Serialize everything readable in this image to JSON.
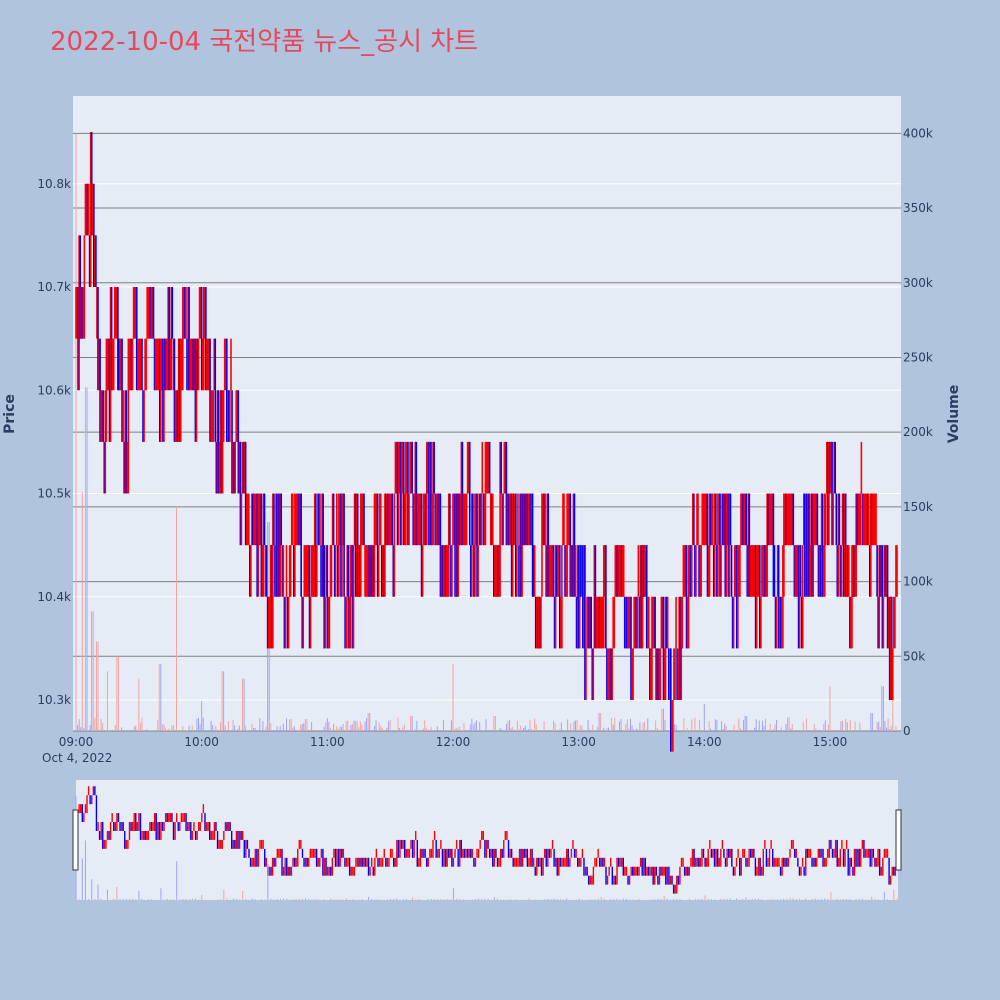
{
  "colors": {
    "page_bg": "#b0c4de",
    "plot_bg": "#e5ecf6",
    "title": "#e8485c",
    "up": "#ff0000",
    "down": "#0000ff",
    "vol_up": "#f4a3a3",
    "vol_down": "#a3a3f4",
    "price_grid": "#ffffff",
    "volume_grid": "#808080",
    "tick_text": "#2a3f5f"
  },
  "chart_data": {
    "type": "candlestick",
    "title": "2022-10-04 국전약품 뉴스_공시 차트",
    "date_label": "Oct 4, 2022",
    "x_ticks": [
      "09:00",
      "10:00",
      "11:00",
      "12:00",
      "13:00",
      "14:00",
      "15:00"
    ],
    "x_range_minutes": [
      0,
      392
    ],
    "price_axis": {
      "label": "Price",
      "range": [
        10270,
        10885
      ],
      "ticks": [
        10300,
        10400,
        10500,
        10600,
        10700,
        10800
      ],
      "tick_labels": [
        "10.3k",
        "10.4k",
        "10.5k",
        "10.6k",
        "10.7k",
        "10.8k"
      ]
    },
    "volume_axis": {
      "label": "Volume",
      "range": [
        0,
        425000
      ],
      "ticks": [
        0,
        50000,
        100000,
        150000,
        200000,
        250000,
        300000,
        350000,
        400000
      ],
      "tick_labels": [
        "0",
        "50k",
        "100k",
        "150k",
        "200k",
        "250k",
        "300k",
        "350k",
        "400k"
      ]
    },
    "price_series": [
      [
        0,
        10650
      ],
      [
        3,
        10700
      ],
      [
        6,
        10750
      ],
      [
        8,
        10800
      ],
      [
        10,
        10650
      ],
      [
        13,
        10550
      ],
      [
        15,
        10600
      ],
      [
        18,
        10650
      ],
      [
        21,
        10600
      ],
      [
        24,
        10550
      ],
      [
        28,
        10650
      ],
      [
        32,
        10600
      ],
      [
        36,
        10650
      ],
      [
        40,
        10600
      ],
      [
        44,
        10650
      ],
      [
        48,
        10600
      ],
      [
        52,
        10650
      ],
      [
        56,
        10600
      ],
      [
        60,
        10650
      ],
      [
        64,
        10600
      ],
      [
        68,
        10550
      ],
      [
        72,
        10600
      ],
      [
        76,
        10550
      ],
      [
        80,
        10500
      ],
      [
        84,
        10450
      ],
      [
        88,
        10450
      ],
      [
        92,
        10400
      ],
      [
        96,
        10450
      ],
      [
        100,
        10400
      ],
      [
        105,
        10450
      ],
      [
        110,
        10400
      ],
      [
        115,
        10450
      ],
      [
        120,
        10400
      ],
      [
        125,
        10450
      ],
      [
        130,
        10400
      ],
      [
        135,
        10450
      ],
      [
        140,
        10400
      ],
      [
        145,
        10450
      ],
      [
        150,
        10450
      ],
      [
        155,
        10500
      ],
      [
        160,
        10500
      ],
      [
        165,
        10450
      ],
      [
        170,
        10500
      ],
      [
        175,
        10450
      ],
      [
        180,
        10450
      ],
      [
        185,
        10500
      ],
      [
        190,
        10450
      ],
      [
        195,
        10500
      ],
      [
        200,
        10450
      ],
      [
        205,
        10500
      ],
      [
        210,
        10450
      ],
      [
        215,
        10450
      ],
      [
        220,
        10400
      ],
      [
        225,
        10450
      ],
      [
        230,
        10400
      ],
      [
        235,
        10450
      ],
      [
        240,
        10400
      ],
      [
        245,
        10350
      ],
      [
        250,
        10400
      ],
      [
        255,
        10350
      ],
      [
        260,
        10400
      ],
      [
        265,
        10350
      ],
      [
        270,
        10400
      ],
      [
        275,
        10350
      ],
      [
        280,
        10350
      ],
      [
        285,
        10300
      ],
      [
        290,
        10400
      ],
      [
        295,
        10450
      ],
      [
        300,
        10450
      ],
      [
        305,
        10450
      ],
      [
        310,
        10450
      ],
      [
        315,
        10400
      ],
      [
        320,
        10450
      ],
      [
        325,
        10400
      ],
      [
        330,
        10450
      ],
      [
        335,
        10400
      ],
      [
        340,
        10450
      ],
      [
        345,
        10400
      ],
      [
        350,
        10450
      ],
      [
        355,
        10450
      ],
      [
        360,
        10500
      ],
      [
        365,
        10450
      ],
      [
        370,
        10400
      ],
      [
        375,
        10500
      ],
      [
        380,
        10450
      ],
      [
        385,
        10400
      ],
      [
        390,
        10350
      ],
      [
        392,
        10400
      ]
    ],
    "volume_spikes": [
      [
        0,
        400000
      ],
      [
        3,
        160000
      ],
      [
        5,
        230000
      ],
      [
        8,
        80000
      ],
      [
        10,
        60000
      ],
      [
        15,
        40000
      ],
      [
        20,
        50000
      ],
      [
        30,
        35000
      ],
      [
        40,
        45000
      ],
      [
        48,
        150000
      ],
      [
        60,
        20000
      ],
      [
        70,
        40000
      ],
      [
        80,
        35000
      ],
      [
        92,
        140000
      ],
      [
        110,
        8000
      ],
      [
        140,
        12000
      ],
      [
        160,
        10000
      ],
      [
        180,
        45000
      ],
      [
        200,
        10000
      ],
      [
        250,
        12000
      ],
      [
        280,
        15000
      ],
      [
        300,
        18000
      ],
      [
        320,
        10000
      ],
      [
        340,
        9000
      ],
      [
        360,
        30000
      ],
      [
        380,
        12000
      ],
      [
        385,
        30000
      ],
      [
        390,
        40000
      ]
    ]
  }
}
